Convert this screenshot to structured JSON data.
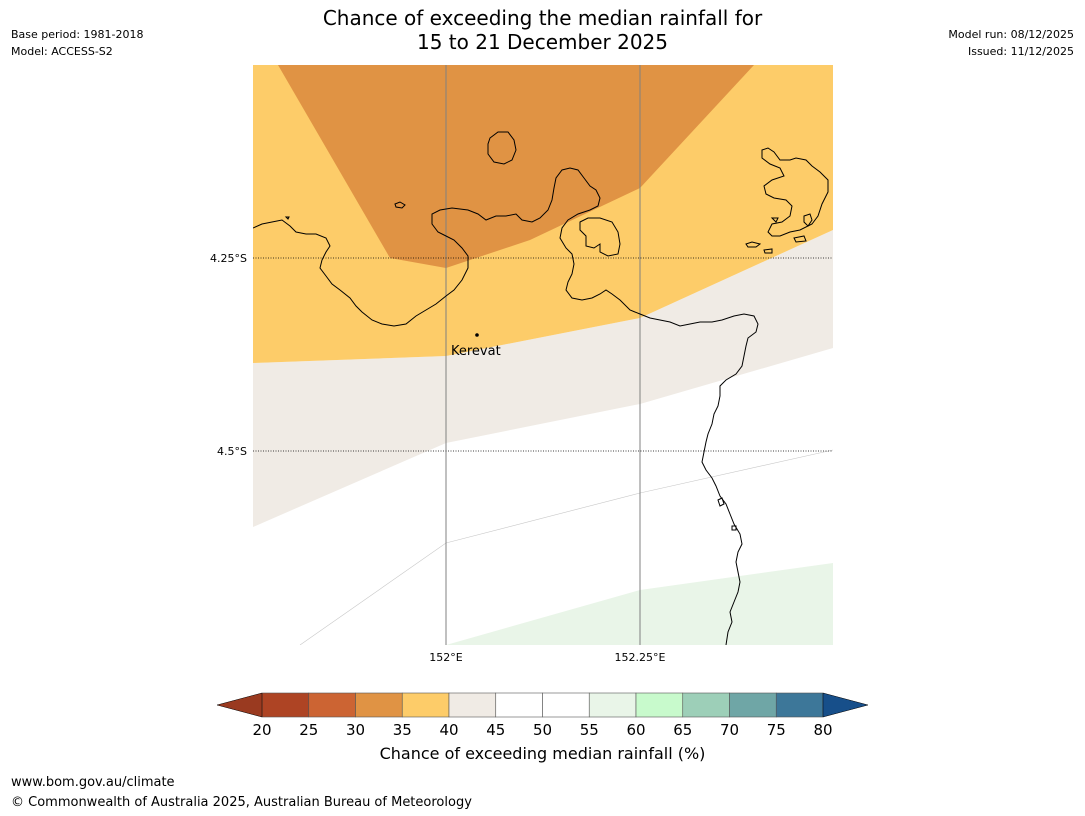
{
  "header": {
    "title_line1": "Chance of exceeding the median rainfall for",
    "title_line2": "15 to 21 December 2025",
    "base_period": "Base period: 1981-2018",
    "model": "Model: ACCESS-S2",
    "model_run": "Model run: 08/12/2025",
    "issued": "Issued: 11/12/2025"
  },
  "map": {
    "lat_labels": [
      "4.25°S",
      "4.5°S"
    ],
    "lon_labels": [
      "152°E",
      "152.25°E"
    ],
    "place": "Kerevat",
    "colors": {
      "p25_30": "#e09344",
      "p35_40": "#fdcc69",
      "p40_45": "#f0ebe5",
      "p55_60": "#e9f5e8",
      "coast": "#000000",
      "grid": "#808080"
    }
  },
  "colorbar": {
    "ticks": [
      "20",
      "25",
      "30",
      "35",
      "40",
      "45",
      "50",
      "55",
      "60",
      "65",
      "70",
      "75",
      "80"
    ],
    "colors": [
      "#ae4424",
      "#cc6433",
      "#e09344",
      "#fdcc69",
      "#f0ebe5",
      "#ffffff",
      "#ffffff",
      "#e9f5e8",
      "#c8facc",
      "#9dcfb8",
      "#6fa6a6",
      "#3d7799"
    ],
    "under_color": "#9a3a20",
    "over_color": "#174f8a",
    "label": "Chance of exceeding median rainfall (%)"
  },
  "footer": {
    "website": "www.bom.gov.au/climate",
    "copyright": "© Commonwealth of Australia 2025, Australian Bureau of Meteorology"
  }
}
